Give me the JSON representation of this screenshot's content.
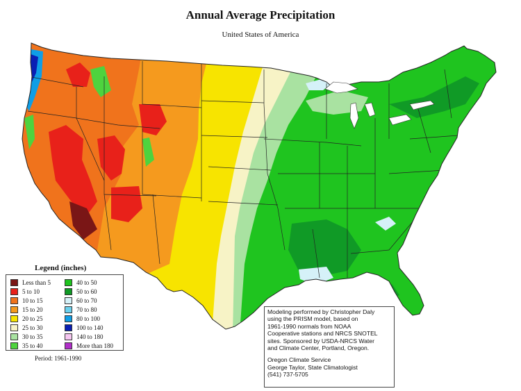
{
  "title": "Annual Average Precipitation",
  "subtitle": "United States of America",
  "legend": {
    "title": "Legend (inches)",
    "items": [
      {
        "label": "Less than 5",
        "color": "#7a1616"
      },
      {
        "label": "5 to 10",
        "color": "#e8211a"
      },
      {
        "label": "10 to 15",
        "color": "#f0731c"
      },
      {
        "label": "15 to 20",
        "color": "#f59a1e"
      },
      {
        "label": "20 to 25",
        "color": "#f7e400"
      },
      {
        "label": "25 to 30",
        "color": "#f7f3c6"
      },
      {
        "label": "30 to 35",
        "color": "#a9e2a1"
      },
      {
        "label": "35 to 40",
        "color": "#4ed33e"
      },
      {
        "label": "40 to 50",
        "color": "#1fc41f"
      },
      {
        "label": "50 to 60",
        "color": "#109a26"
      },
      {
        "label": "60 to 70",
        "color": "#d5f1f8"
      },
      {
        "label": "70 to 80",
        "color": "#6cd1ee"
      },
      {
        "label": "80 to 100",
        "color": "#0f9ee6"
      },
      {
        "label": "100 to 140",
        "color": "#0a1fb4"
      },
      {
        "label": "140 to 180",
        "color": "#f6c7f1"
      },
      {
        "label": "More than 180",
        "color": "#b12fc9"
      }
    ]
  },
  "period": "Period: 1961-1990",
  "credits": {
    "lines": [
      "Modeling performed by Christopher Daly",
      "using the PRISM model, based on",
      "1961-1990 normals from NOAA",
      "Cooperative stations and NRCS SNOTEL",
      "sites.  Sponsored by USDA-NRCS Water",
      "and Climate Center, Portland, Oregon."
    ],
    "org_lines": [
      "Oregon Climate Service",
      "George Taylor, State Climatologist",
      "(541) 737-5705"
    ]
  }
}
